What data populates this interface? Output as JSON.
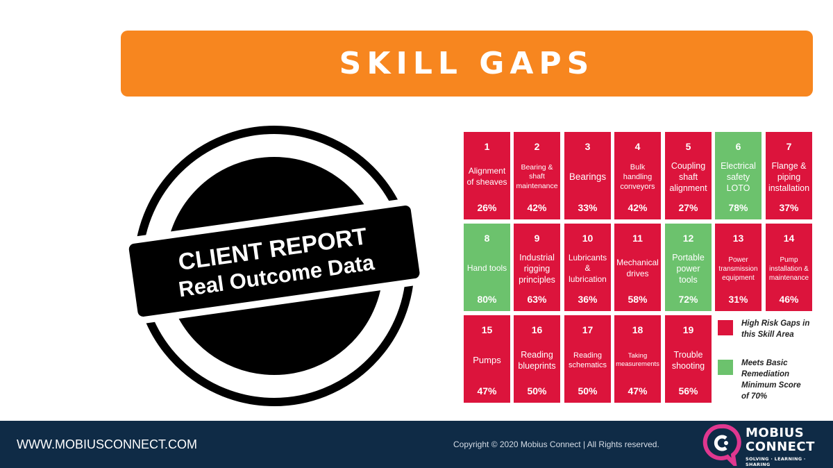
{
  "banner": {
    "title": "SKILL GAPS"
  },
  "stamp": {
    "line1": "CLIENT REPORT",
    "line2": "Real Outcome Data"
  },
  "colors": {
    "risk": "#dc143c",
    "meets": "#6cc26d",
    "banner": "#f7861f",
    "footer": "#0f2b46",
    "logo_accent": "#e0378f"
  },
  "skills": [
    {
      "num": "1",
      "label": "Alignment of sheaves",
      "pct": "26%",
      "status": "risk"
    },
    {
      "num": "2",
      "label": "Bearing & shaft maintenance",
      "pct": "42%",
      "status": "risk"
    },
    {
      "num": "3",
      "label": "Bearings",
      "pct": "33%",
      "status": "risk"
    },
    {
      "num": "4",
      "label": "Bulk handling conveyors",
      "pct": "42%",
      "status": "risk"
    },
    {
      "num": "5",
      "label": "Coupling shaft alignment",
      "pct": "27%",
      "status": "risk"
    },
    {
      "num": "6",
      "label": "Electrical safety LOTO",
      "pct": "78%",
      "status": "meets"
    },
    {
      "num": "7",
      "label": "Flange & piping installation",
      "pct": "37%",
      "status": "risk"
    },
    {
      "num": "8",
      "label": "Hand tools",
      "pct": "80%",
      "status": "meets"
    },
    {
      "num": "9",
      "label": "Industrial rigging principles",
      "pct": "63%",
      "status": "risk"
    },
    {
      "num": "10",
      "label": "Lubricants & lubrication",
      "pct": "36%",
      "status": "risk"
    },
    {
      "num": "11",
      "label": "Mechanical drives",
      "pct": "58%",
      "status": "risk"
    },
    {
      "num": "12",
      "label": "Portable power tools",
      "pct": "72%",
      "status": "meets"
    },
    {
      "num": "13",
      "label": "Power transmission equipment",
      "pct": "31%",
      "status": "risk"
    },
    {
      "num": "14",
      "label": "Pump installation & maintenance",
      "pct": "46%",
      "status": "risk"
    },
    {
      "num": "15",
      "label": "Pumps",
      "pct": "47%",
      "status": "risk"
    },
    {
      "num": "16",
      "label": "Reading blueprints",
      "pct": "50%",
      "status": "risk"
    },
    {
      "num": "17",
      "label": "Reading schematics",
      "pct": "50%",
      "status": "risk"
    },
    {
      "num": "18",
      "label": "Taking measurements",
      "pct": "47%",
      "status": "risk"
    },
    {
      "num": "19",
      "label": "Trouble shooting",
      "pct": "56%",
      "status": "risk"
    }
  ],
  "legend": {
    "risk_label": "High Risk Gaps in this Skill Area",
    "meets_label": "Meets Basic Remediation Minimum Score of 70%"
  },
  "footer": {
    "url": "WWW.MOBIUSCONNECT.COM",
    "copyright": "Copyright © 2020 Mobius Connect | All Rights reserved.",
    "logo_line1": "MOBIUS",
    "logo_line2": "CONNECT",
    "logo_tagline": "SOLVING · LEARNING · SHARING"
  }
}
